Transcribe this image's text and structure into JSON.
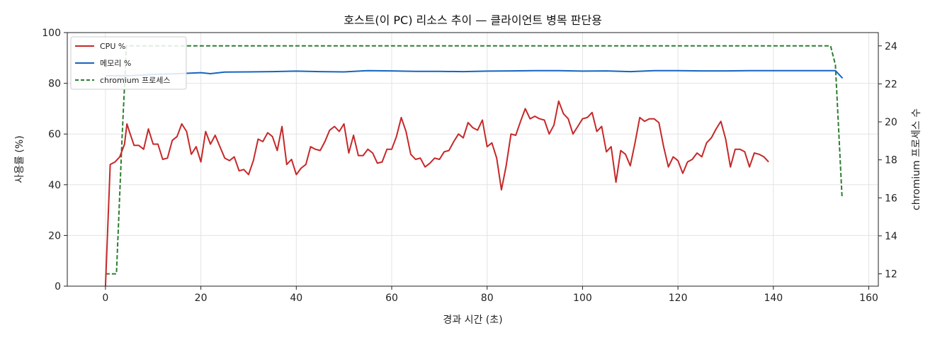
{
  "chart_data": {
    "type": "line",
    "title": "호스트(이 PC) 리소스 추이 — 클라이언트 병목 판단용",
    "xlabel": "경과 시간 (초)",
    "ylabel": "사용률 (%)",
    "y2label": "chromium 프로세스 수",
    "xlim": [
      -8,
      162
    ],
    "ylim": [
      0,
      100
    ],
    "y2lim": [
      11.35,
      24.7
    ],
    "xticks": [
      0,
      20,
      40,
      60,
      80,
      100,
      120,
      140,
      160
    ],
    "yticks": [
      0,
      20,
      40,
      60,
      80,
      100
    ],
    "y2ticks": [
      12,
      14,
      16,
      18,
      20,
      22,
      24
    ],
    "grid": true,
    "legend_position": "top-left",
    "series": [
      {
        "name": "CPU %",
        "axis": "left",
        "color": "#c62828",
        "style": "solid",
        "points": [
          [
            0,
            0
          ],
          [
            1,
            48
          ],
          [
            2,
            49
          ],
          [
            3,
            51
          ],
          [
            4,
            56
          ],
          [
            4.5,
            64
          ],
          [
            5,
            61
          ],
          [
            6,
            55.5
          ],
          [
            7,
            55.5
          ],
          [
            8,
            54
          ],
          [
            9,
            62
          ],
          [
            10,
            56
          ],
          [
            11,
            56
          ],
          [
            12,
            50
          ],
          [
            13,
            50.5
          ],
          [
            14,
            57.5
          ],
          [
            15,
            59
          ],
          [
            16,
            64
          ],
          [
            17,
            61
          ],
          [
            18,
            52
          ],
          [
            19,
            55
          ],
          [
            20,
            49
          ],
          [
            21,
            61
          ],
          [
            22,
            56
          ],
          [
            23,
            59.5
          ],
          [
            24,
            55
          ],
          [
            25,
            50.5
          ],
          [
            26,
            49.5
          ],
          [
            27,
            51
          ],
          [
            28,
            45.5
          ],
          [
            29,
            46
          ],
          [
            30,
            44
          ],
          [
            31,
            49.5
          ],
          [
            32,
            58
          ],
          [
            33,
            57
          ],
          [
            34,
            60.5
          ],
          [
            35,
            59
          ],
          [
            36,
            53.5
          ],
          [
            37,
            63
          ],
          [
            38,
            48
          ],
          [
            39,
            50
          ],
          [
            40,
            44
          ],
          [
            41,
            46.5
          ],
          [
            42,
            48
          ],
          [
            43,
            55
          ],
          [
            44,
            54
          ],
          [
            45,
            53.5
          ],
          [
            46,
            57
          ],
          [
            47,
            61.5
          ],
          [
            48,
            63
          ],
          [
            49,
            61
          ],
          [
            50,
            64
          ],
          [
            51,
            52.5
          ],
          [
            52,
            59.5
          ],
          [
            53,
            51.5
          ],
          [
            54,
            51.5
          ],
          [
            55,
            54
          ],
          [
            56,
            52.5
          ],
          [
            57,
            48.5
          ],
          [
            58,
            49
          ],
          [
            59,
            54
          ],
          [
            60,
            54
          ],
          [
            61,
            59
          ],
          [
            62,
            66.5
          ],
          [
            63,
            61
          ],
          [
            64,
            52
          ],
          [
            65,
            50
          ],
          [
            66,
            50.5
          ],
          [
            67,
            47
          ],
          [
            68,
            48.5
          ],
          [
            69,
            50.5
          ],
          [
            70,
            50
          ],
          [
            71,
            53
          ],
          [
            72,
            53.5
          ],
          [
            73,
            57
          ],
          [
            74,
            60
          ],
          [
            75,
            58.5
          ],
          [
            76,
            64.5
          ],
          [
            77,
            62.5
          ],
          [
            78,
            61.5
          ],
          [
            79,
            65.5
          ],
          [
            80,
            55
          ],
          [
            81,
            56.5
          ],
          [
            82,
            50.5
          ],
          [
            83,
            38
          ],
          [
            84,
            47.5
          ],
          [
            85,
            60
          ],
          [
            86,
            59.5
          ],
          [
            87,
            65
          ],
          [
            88,
            70
          ],
          [
            89,
            66
          ],
          [
            90,
            67
          ],
          [
            91,
            66
          ],
          [
            92,
            65.5
          ],
          [
            93,
            60
          ],
          [
            94,
            63.5
          ],
          [
            95,
            73
          ],
          [
            96,
            68
          ],
          [
            97,
            66
          ],
          [
            98,
            60
          ],
          [
            99,
            63
          ],
          [
            100,
            66
          ],
          [
            101,
            66.5
          ],
          [
            102,
            68.5
          ],
          [
            103,
            61
          ],
          [
            104,
            63
          ],
          [
            105,
            53
          ],
          [
            106,
            55
          ],
          [
            107,
            41
          ],
          [
            108,
            53.5
          ],
          [
            109,
            52
          ],
          [
            110,
            47.5
          ],
          [
            111,
            56.5
          ],
          [
            112,
            66.5
          ],
          [
            113,
            65
          ],
          [
            114,
            66
          ],
          [
            115,
            66
          ],
          [
            116,
            64.5
          ],
          [
            117,
            55
          ],
          [
            118,
            47
          ],
          [
            119,
            51
          ],
          [
            120,
            49.5
          ],
          [
            121,
            44.5
          ],
          [
            122,
            49
          ],
          [
            123,
            50
          ],
          [
            124,
            52.5
          ],
          [
            125,
            51
          ],
          [
            126,
            56.5
          ],
          [
            127,
            58.5
          ],
          [
            128,
            62
          ],
          [
            129,
            65
          ],
          [
            130,
            58
          ],
          [
            131,
            47
          ],
          [
            132,
            54
          ],
          [
            133,
            54
          ],
          [
            134,
            53
          ],
          [
            135,
            47
          ],
          [
            136,
            52.5
          ],
          [
            137,
            52
          ],
          [
            138,
            51
          ],
          [
            139,
            49
          ]
        ]
      },
      {
        "name": "메모리 %",
        "axis": "left",
        "color": "#1565c0",
        "style": "solid",
        "points": [
          [
            0,
            83
          ],
          [
            5,
            83
          ],
          [
            10,
            83.5
          ],
          [
            15,
            83.8
          ],
          [
            20,
            84.2
          ],
          [
            22,
            83.8
          ],
          [
            25,
            84.4
          ],
          [
            30,
            84.5
          ],
          [
            35,
            84.6
          ],
          [
            40,
            84.8
          ],
          [
            45,
            84.6
          ],
          [
            50,
            84.5
          ],
          [
            55,
            85
          ],
          [
            60,
            84.9
          ],
          [
            65,
            84.7
          ],
          [
            70,
            84.7
          ],
          [
            75,
            84.6
          ],
          [
            80,
            84.8
          ],
          [
            85,
            84.9
          ],
          [
            90,
            85
          ],
          [
            95,
            85
          ],
          [
            100,
            84.8
          ],
          [
            105,
            84.9
          ],
          [
            110,
            84.6
          ],
          [
            115,
            85
          ],
          [
            120,
            85
          ],
          [
            125,
            84.9
          ],
          [
            130,
            84.9
          ],
          [
            135,
            85
          ],
          [
            140,
            85
          ],
          [
            145,
            85
          ],
          [
            150,
            85
          ],
          [
            153,
            85
          ],
          [
            154.5,
            82
          ]
        ]
      },
      {
        "name": "chromium 프로세스",
        "axis": "right",
        "color": "#2e7d32",
        "style": "dashed",
        "points": [
          [
            0,
            12
          ],
          [
            2.3,
            12
          ],
          [
            3.5,
            19.3
          ],
          [
            4.4,
            24
          ],
          [
            152,
            24
          ],
          [
            153,
            23
          ],
          [
            154.4,
            16
          ]
        ]
      }
    ]
  }
}
